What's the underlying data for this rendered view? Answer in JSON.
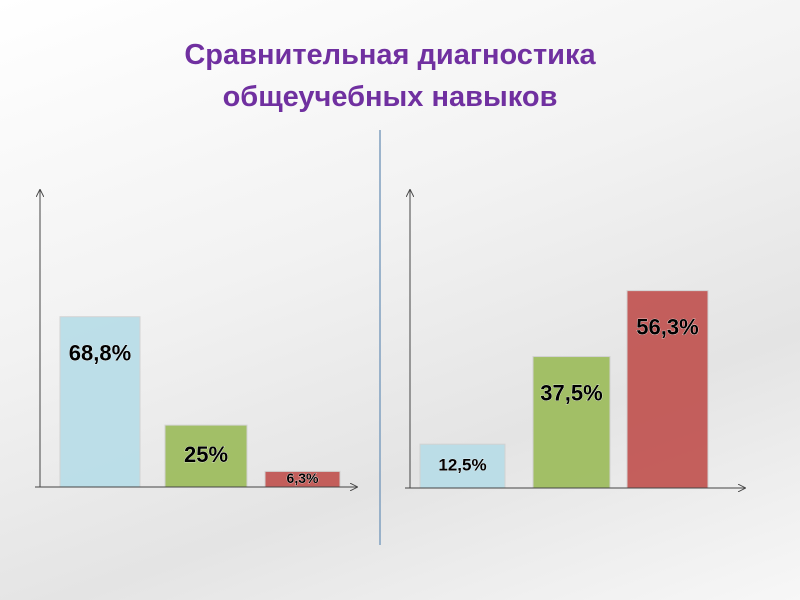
{
  "title": "Сравнительная диагностика общеучебных навыков",
  "chart_data": [
    {
      "type": "bar",
      "categories": [
        null,
        null,
        null
      ],
      "values": [
        68.8,
        25,
        6.3
      ],
      "value_labels": [
        "68,8%",
        "25%",
        "6,3%"
      ],
      "colors": [
        "#b7dde8",
        "#9bbb59",
        "#c0504d"
      ],
      "ylim": [
        0,
        120
      ]
    },
    {
      "type": "bar",
      "categories": [
        null,
        null,
        null
      ],
      "values": [
        12.5,
        37.5,
        56.3
      ],
      "value_labels": [
        "12,5%",
        "37,5%",
        "56,3%"
      ],
      "colors": [
        "#b7dde8",
        "#9bbb59",
        "#c0504d"
      ],
      "ylim": [
        0,
        85
      ]
    }
  ]
}
